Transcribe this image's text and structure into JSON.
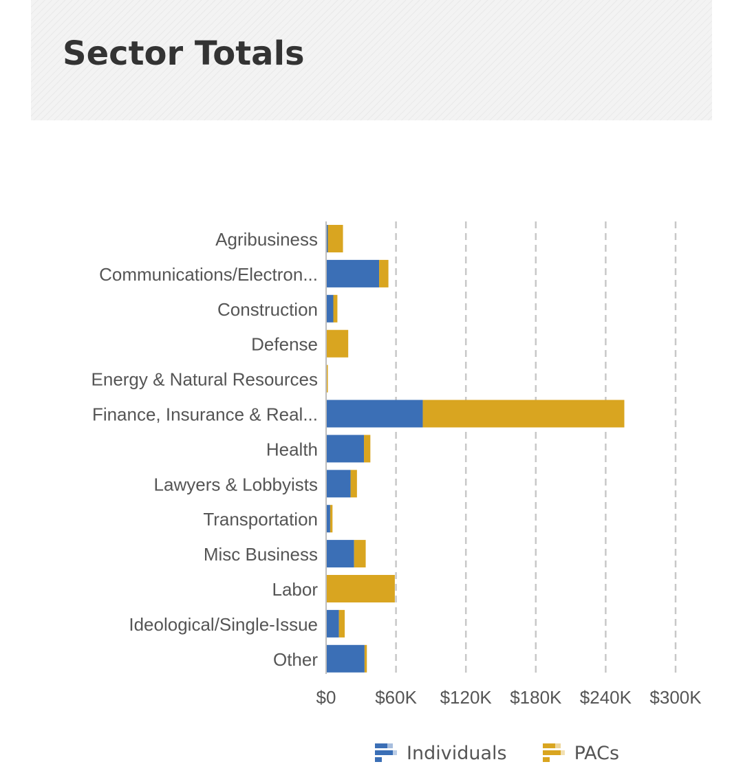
{
  "header": {
    "title": "Sector Totals"
  },
  "colors": {
    "individuals": "#3B6FB6",
    "pacs": "#D9A520",
    "grid": "#c8c8c8",
    "label_text": "#555555"
  },
  "legend": {
    "items": [
      {
        "label": "Individuals",
        "icon": "bar-chart-icon",
        "color": "#3B6FB6"
      },
      {
        "label": "PACs",
        "icon": "bar-chart-icon",
        "color": "#D9A520"
      }
    ]
  },
  "chart_data": {
    "type": "bar",
    "orientation": "horizontal",
    "stacked": true,
    "title": "Sector Totals",
    "categories": [
      "Agribusiness",
      "Communications/Electron...",
      "Construction",
      "Defense",
      "Energy & Natural Resources",
      "Finance, Insurance & Real...",
      "Health",
      "Lawyers & Lobbyists",
      "Transportation",
      "Misc Business",
      "Labor",
      "Ideological/Single-Issue",
      "Other"
    ],
    "series": [
      {
        "name": "Individuals",
        "color": "#3B6FB6",
        "values": [
          1500,
          45500,
          6200,
          500,
          500,
          83000,
          32500,
          21000,
          3500,
          24000,
          0,
          11000,
          33000
        ]
      },
      {
        "name": "PACs",
        "color": "#D9A520",
        "values": [
          13000,
          8000,
          3500,
          18500,
          1000,
          173000,
          5500,
          5500,
          2000,
          10000,
          59000,
          5000,
          2000
        ]
      }
    ],
    "xlim": [
      0,
      300000
    ],
    "x_ticks": [
      0,
      60000,
      120000,
      180000,
      240000,
      300000
    ],
    "x_tick_labels": [
      "$0",
      "$60K",
      "$120K",
      "$180K",
      "$240K",
      "$300K"
    ],
    "grid": "vertical dashed",
    "legend_position": "bottom"
  }
}
